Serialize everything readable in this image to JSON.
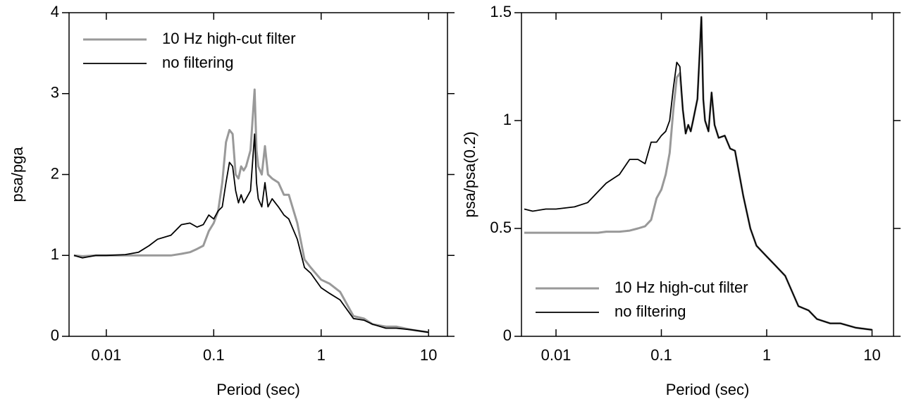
{
  "chart_data": [
    {
      "type": "line",
      "xlabel": "Period (sec)",
      "ylabel": "psa/pga",
      "xlog": true,
      "legend": "upper left",
      "xlim": [
        0.0045,
        15
      ],
      "ylim": [
        0,
        4
      ],
      "xticks": [
        0.01,
        0.1,
        1,
        10
      ],
      "yticks": [
        0,
        1,
        2,
        3,
        4
      ],
      "x": [
        0.005,
        0.006,
        0.008,
        0.01,
        0.015,
        0.02,
        0.025,
        0.03,
        0.04,
        0.05,
        0.06,
        0.07,
        0.08,
        0.09,
        0.1,
        0.11,
        0.12,
        0.13,
        0.14,
        0.15,
        0.16,
        0.17,
        0.18,
        0.19,
        0.2,
        0.22,
        0.24,
        0.25,
        0.26,
        0.28,
        0.3,
        0.32,
        0.35,
        0.4,
        0.45,
        0.5,
        0.6,
        0.7,
        0.8,
        1,
        1.2,
        1.5,
        2,
        2.5,
        3,
        4,
        5,
        7,
        10
      ],
      "series": [
        {
          "name": "10 Hz high-cut filter",
          "color": "#999999",
          "width": 3,
          "values": [
            1.0,
            0.99,
            1.0,
            1.0,
            1.0,
            1.0,
            1.0,
            1.0,
            1.0,
            1.02,
            1.04,
            1.08,
            1.12,
            1.3,
            1.4,
            1.55,
            1.9,
            2.4,
            2.55,
            2.5,
            2.0,
            1.95,
            2.1,
            2.05,
            2.1,
            2.3,
            3.05,
            2.3,
            2.1,
            2.0,
            2.35,
            2.0,
            1.95,
            1.9,
            1.75,
            1.75,
            1.4,
            0.95,
            0.85,
            0.7,
            0.65,
            0.55,
            0.25,
            0.22,
            0.15,
            0.12,
            0.12,
            0.08,
            0.05
          ]
        },
        {
          "name": "no filtering",
          "color": "#000000",
          "width": 1.8,
          "values": [
            1.0,
            0.97,
            1.0,
            1.0,
            1.01,
            1.04,
            1.12,
            1.2,
            1.25,
            1.38,
            1.4,
            1.35,
            1.38,
            1.5,
            1.45,
            1.55,
            1.6,
            1.9,
            2.15,
            2.1,
            1.8,
            1.65,
            1.75,
            1.65,
            1.7,
            1.8,
            2.5,
            1.9,
            1.7,
            1.6,
            1.9,
            1.6,
            1.7,
            1.6,
            1.5,
            1.45,
            1.2,
            0.85,
            0.78,
            0.6,
            0.53,
            0.45,
            0.22,
            0.2,
            0.15,
            0.1,
            0.1,
            0.08,
            0.05
          ]
        }
      ]
    },
    {
      "type": "line",
      "xlabel": "Period (sec)",
      "ylabel": "psa/psa(0.2)",
      "xlog": true,
      "legend": "lower left",
      "xlim": [
        0.0047,
        16
      ],
      "ylim": [
        0,
        1.5
      ],
      "xticks": [
        0.01,
        0.1,
        1,
        10
      ],
      "yticks": [
        0,
        0.5,
        1,
        1.5
      ],
      "x": [
        0.005,
        0.006,
        0.008,
        0.01,
        0.015,
        0.02,
        0.025,
        0.03,
        0.04,
        0.05,
        0.06,
        0.07,
        0.08,
        0.09,
        0.1,
        0.11,
        0.12,
        0.13,
        0.14,
        0.15,
        0.16,
        0.17,
        0.18,
        0.19,
        0.2,
        0.22,
        0.24,
        0.25,
        0.26,
        0.28,
        0.3,
        0.32,
        0.35,
        0.4,
        0.45,
        0.5,
        0.6,
        0.7,
        0.8,
        1,
        1.2,
        1.5,
        2,
        2.5,
        3,
        4,
        5,
        7,
        10
      ],
      "series": [
        {
          "name": "10 Hz high-cut filter",
          "color": "#999999",
          "width": 3,
          "values": [
            0.48,
            0.48,
            0.48,
            0.48,
            0.48,
            0.48,
            0.48,
            0.485,
            0.485,
            0.49,
            0.5,
            0.51,
            0.54,
            0.64,
            0.68,
            0.75,
            0.85,
            1.05,
            1.2,
            1.22,
            1.05,
            0.94,
            0.98,
            0.95,
            1.0,
            1.1,
            1.48,
            1.1,
            1.0,
            0.95,
            1.13,
            0.98,
            0.92,
            0.93,
            0.87,
            0.86,
            0.65,
            0.5,
            0.42,
            0.37,
            0.33,
            0.28,
            0.14,
            0.12,
            0.08,
            0.06,
            0.06,
            0.04,
            0.03
          ]
        },
        {
          "name": "no filtering",
          "color": "#000000",
          "width": 1.8,
          "values": [
            0.59,
            0.58,
            0.59,
            0.59,
            0.6,
            0.62,
            0.67,
            0.71,
            0.75,
            0.82,
            0.82,
            0.8,
            0.9,
            0.9,
            0.93,
            0.95,
            1.0,
            1.15,
            1.27,
            1.25,
            1.05,
            0.94,
            0.98,
            0.95,
            1.0,
            1.1,
            1.48,
            1.1,
            1.0,
            0.95,
            1.13,
            0.98,
            0.92,
            0.93,
            0.87,
            0.86,
            0.65,
            0.5,
            0.42,
            0.37,
            0.33,
            0.28,
            0.14,
            0.12,
            0.08,
            0.06,
            0.06,
            0.04,
            0.03
          ]
        }
      ]
    }
  ]
}
